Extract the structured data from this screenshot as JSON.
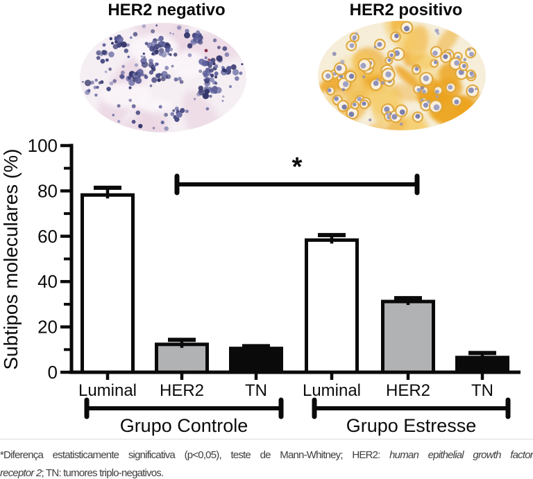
{
  "figure": {
    "panels": [
      {
        "title": "HER2 negativo"
      },
      {
        "title": "HER2 positivo"
      }
    ],
    "histology": {
      "negative": {
        "background": "#f5eef3",
        "tissue": "#ead5e2",
        "light_patch": "#fbf6fa",
        "nuclei": [
          "#45477f",
          "#5d5f9b",
          "#34366b",
          "#7577ab"
        ],
        "accent": "#8a3046"
      },
      "positive": {
        "background": "#f6eed9",
        "stain": [
          "#f5c95f",
          "#f0b13a",
          "#eda21f",
          "#f8dc95"
        ],
        "strong_stain": "#eca21c",
        "cell_halo": "#faf3e3",
        "cell_rim": "#dfa73c",
        "nuclei": [
          "#8d8fba",
          "#7b7eac",
          "#9fa1c5"
        ]
      }
    }
  },
  "chart_data": {
    "type": "bar",
    "title": "",
    "xlabel": "",
    "ylabel": "Subtipos moleculares (%)",
    "ylim": [
      0,
      100
    ],
    "yticks_major": [
      0,
      20,
      40,
      60,
      80,
      100
    ],
    "yticks_minor": [
      10,
      30,
      50,
      70,
      90
    ],
    "grid": false,
    "legend_position": "none",
    "categories": [
      "Luminal",
      "HER2",
      "TN"
    ],
    "groups": [
      {
        "label": "Grupo Controle",
        "values": [
          78.2,
          12.3,
          10.5
        ],
        "errors": [
          3.2,
          2.0,
          1.0
        ]
      },
      {
        "label": "Grupo Estresse",
        "values": [
          58.3,
          31.2,
          6.5
        ],
        "errors": [
          2.2,
          1.5,
          2.0
        ]
      }
    ],
    "bar_styles": [
      {
        "name": "Luminal",
        "fill": "#ffffff"
      },
      {
        "name": "HER2",
        "fill": "#b0b2b4"
      },
      {
        "name": "TN",
        "fill": "#0a0a0a"
      }
    ],
    "bar_stroke": "#0a0a0a",
    "significance": {
      "symbol": "*",
      "comparison": "Grupo Controle vs Grupo Estresse"
    }
  },
  "footnote": {
    "line1": {
      "text": "*Diferença estatisticamente significativa (p<0,05), teste de Mann-Whitney; HER2:",
      "italic": "human epithelial growth factor"
    },
    "line2": {
      "italic": "receptor 2",
      "text": "; TN: tumores triplo-negativos."
    }
  }
}
